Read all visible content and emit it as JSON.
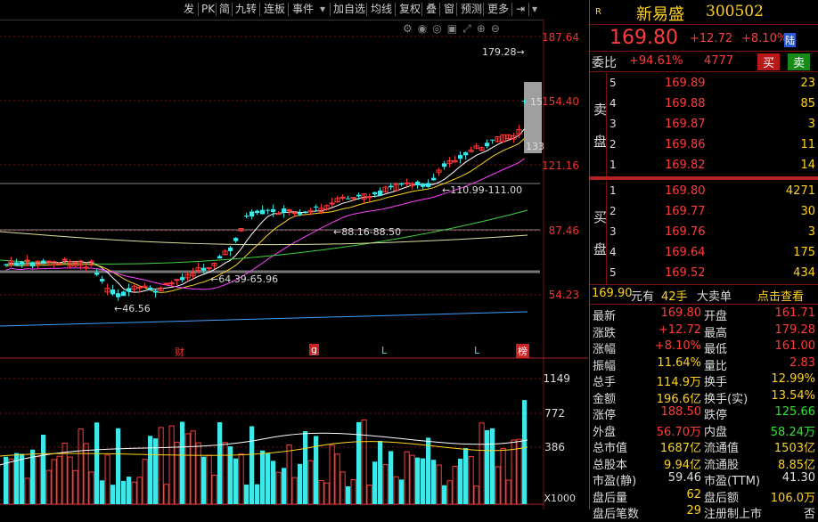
{
  "toolbar": {
    "items": [
      "发",
      "PK",
      "简",
      "九转",
      "连板",
      "事件",
      "加自选",
      "均线",
      "复权",
      "叠",
      "窗",
      "预测",
      "更多"
    ]
  },
  "chart": {
    "price_labels": [
      "187.64",
      "154.40",
      "121.16",
      "87.46",
      "54.23"
    ],
    "volume_labels": [
      "1149",
      "772",
      "386"
    ],
    "volume_unit": "X1000",
    "annotations": {
      "high": "179.28",
      "low": "46.56",
      "level1": "110.99-111.00",
      "level2": "88.16-88.50",
      "level3": "64.39-65.96",
      "right_mid": "15",
      "right_low": "133"
    },
    "event_markers": [
      "财",
      "g",
      "L",
      "L",
      "榜"
    ]
  },
  "stock": {
    "badge": "R",
    "name": "新易盛",
    "code": "300502",
    "price": "169.80",
    "change": "+12.72",
    "change_pct": "+8.10%",
    "market_tag": "陆",
    "weibi_label": "委比",
    "weibi_value": "+94.61%",
    "weicha_value": "4777",
    "buy_btn": "买",
    "sell_btn": "卖"
  },
  "sell_book": {
    "label": [
      "卖",
      "盘"
    ],
    "rows": [
      {
        "lvl": "5",
        "price": "169.89",
        "vol": "23"
      },
      {
        "lvl": "4",
        "price": "169.88",
        "vol": "85"
      },
      {
        "lvl": "3",
        "price": "169.87",
        "vol": "3"
      },
      {
        "lvl": "2",
        "price": "169.86",
        "vol": "11"
      },
      {
        "lvl": "1",
        "price": "169.82",
        "vol": "14"
      }
    ]
  },
  "buy_book": {
    "label": [
      "买",
      "盘"
    ],
    "rows": [
      {
        "lvl": "1",
        "price": "169.80",
        "vol": "4271"
      },
      {
        "lvl": "2",
        "price": "169.77",
        "vol": "30"
      },
      {
        "lvl": "3",
        "price": "169.76",
        "vol": "3"
      },
      {
        "lvl": "4",
        "price": "169.64",
        "vol": "175"
      },
      {
        "lvl": "5",
        "price": "169.52",
        "vol": "434"
      }
    ]
  },
  "bigorder": {
    "price": "169.90",
    "unit": "元有",
    "qty": "42手",
    "type": "大卖单",
    "link": "点击查看"
  },
  "stats": [
    {
      "l1": "最新",
      "v1": "169.80",
      "c1": "red",
      "l2": "开盘",
      "v2": "161.71",
      "c2": "red"
    },
    {
      "l1": "涨跌",
      "v1": "+12.72",
      "c1": "red",
      "l2": "最高",
      "v2": "179.28",
      "c2": "red"
    },
    {
      "l1": "涨幅",
      "v1": "+8.10%",
      "c1": "red",
      "l2": "最低",
      "v2": "161.00",
      "c2": "red"
    },
    {
      "l1": "振幅",
      "v1": "11.64%",
      "c1": "yel",
      "l2": "量比",
      "v2": "2.83",
      "c2": "red"
    },
    {
      "l1": "总手",
      "v1": "114.9万",
      "c1": "yel",
      "l2": "换手",
      "v2": "12.99%",
      "c2": "yel"
    },
    {
      "l1": "金额",
      "v1": "196.6亿",
      "c1": "yel",
      "l2": "换手(实)",
      "v2": "13.54%",
      "c2": "yel"
    },
    {
      "l1": "涨停",
      "v1": "188.50",
      "c1": "red",
      "l2": "跌停",
      "v2": "125.66",
      "c2": "grn"
    },
    {
      "l1": "外盘",
      "v1": "56.70万",
      "c1": "red",
      "l2": "内盘",
      "v2": "58.24万",
      "c2": "grn"
    },
    {
      "l1": "总市值",
      "v1": "1687亿",
      "c1": "yel",
      "l2": "流通值",
      "v2": "1503亿",
      "c2": "yel"
    },
    {
      "l1": "总股本",
      "v1": "9.94亿",
      "c1": "yel",
      "l2": "流通股",
      "v2": "8.85亿",
      "c2": "yel"
    },
    {
      "l1": "市盈(静)",
      "v1": "59.46",
      "c1": "wht",
      "l2": "市盈(TTM)",
      "v2": "41.30",
      "c2": "wht"
    },
    {
      "l1": "盘后量",
      "v1": "62",
      "c1": "yel",
      "l2": "盘后额",
      "v2": "106.0万",
      "c2": "yel"
    },
    {
      "l1": "盘后笔数",
      "v1": "29",
      "c1": "yel",
      "l2": "注册制上市",
      "v2": "否",
      "c2": "wht"
    }
  ],
  "colors": {
    "up": "#ff3b3b",
    "down": "#3fe8e8",
    "ma5": "#ffffff",
    "ma10": "#ffd21f",
    "ma20": "#ff40ff",
    "ma60": "#3fd23f",
    "ma120": "#e0e0a0",
    "ma250": "#3fa0ff",
    "accent": "#b22222"
  }
}
